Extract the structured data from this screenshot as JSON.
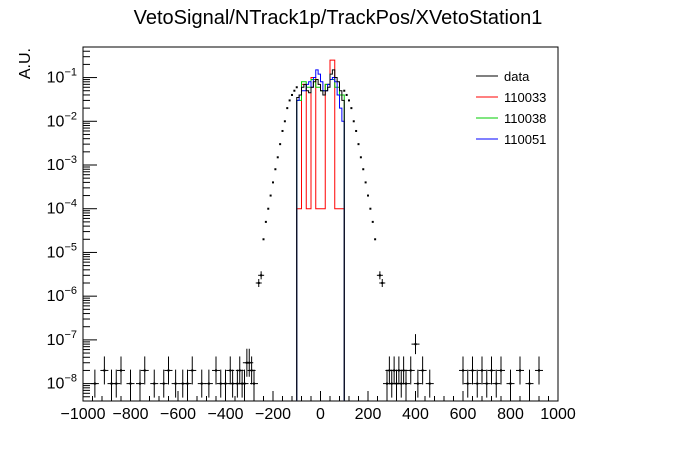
{
  "chart_data": {
    "type": "histogram",
    "title": "VetoSignal/NTrack1p/TrackPos/XVetoStation1",
    "xlabel": "",
    "ylabel": "A.U.",
    "xlim": [
      -1000,
      1000
    ],
    "ylim": [
      4e-09,
      0.5
    ],
    "y_scale": "log",
    "grid": false,
    "legend_position": "top-right",
    "x_ticks": [
      -1000,
      -800,
      -600,
      -400,
      -200,
      0,
      200,
      400,
      600,
      800,
      1000
    ],
    "x_tick_labels": [
      "−1000",
      "−800",
      "−600",
      "−400",
      "−200",
      "0",
      "200",
      "400",
      "600",
      "800",
      "1000"
    ],
    "y_ticks": [
      {
        "value": 1e-08,
        "base": "10",
        "exp": "−8"
      },
      {
        "value": 1e-07,
        "base": "10",
        "exp": "−7"
      },
      {
        "value": 1e-06,
        "base": "10",
        "exp": "−6"
      },
      {
        "value": 1e-05,
        "base": "10",
        "exp": "−5"
      },
      {
        "value": 0.0001,
        "base": "10",
        "exp": "−4"
      },
      {
        "value": 0.001,
        "base": "10",
        "exp": "−3"
      },
      {
        "value": 0.01,
        "base": "10",
        "exp": "−2"
      },
      {
        "value": 0.1,
        "base": "10",
        "exp": "−1"
      }
    ],
    "series": [
      {
        "name": "data",
        "style": "markers",
        "color": "#000000",
        "points": [
          [
            -950,
            1e-08
          ],
          [
            -910,
            2e-08
          ],
          [
            -880,
            1e-08
          ],
          [
            -860,
            1e-08
          ],
          [
            -840,
            2e-08
          ],
          [
            -800,
            1e-08
          ],
          [
            -760,
            1e-08
          ],
          [
            -740,
            2e-08
          ],
          [
            -700,
            1e-08
          ],
          [
            -660,
            1e-08
          ],
          [
            -640,
            2e-08
          ],
          [
            -610,
            1e-08
          ],
          [
            -580,
            1e-08
          ],
          [
            -560,
            1e-08
          ],
          [
            -540,
            2e-08
          ],
          [
            -500,
            1e-08
          ],
          [
            -470,
            1e-08
          ],
          [
            -440,
            2e-08
          ],
          [
            -420,
            1e-08
          ],
          [
            -400,
            1e-08
          ],
          [
            -380,
            2e-08
          ],
          [
            -370,
            1e-08
          ],
          [
            -350,
            1e-08
          ],
          [
            -340,
            2e-08
          ],
          [
            -330,
            1e-08
          ],
          [
            -320,
            1e-08
          ],
          [
            -310,
            3e-08
          ],
          [
            -300,
            3e-08
          ],
          [
            -290,
            2e-08
          ],
          [
            -280,
            1e-08
          ],
          [
            -260,
            2e-06
          ],
          [
            -250,
            3e-06
          ],
          [
            -240,
            2e-05
          ],
          [
            -230,
            5e-05
          ],
          [
            -220,
            0.0001
          ],
          [
            -210,
            0.0002
          ],
          [
            -200,
            0.0004
          ],
          [
            -190,
            0.0008
          ],
          [
            -180,
            0.0015
          ],
          [
            -170,
            0.003
          ],
          [
            -160,
            0.006
          ],
          [
            -150,
            0.01
          ],
          [
            -140,
            0.02
          ],
          [
            -130,
            0.03
          ],
          [
            -120,
            0.04
          ],
          [
            -110,
            0.05
          ],
          [
            -100,
            0.06
          ],
          [
            100,
            0.05
          ],
          [
            110,
            0.04
          ],
          [
            120,
            0.03
          ],
          [
            130,
            0.02
          ],
          [
            140,
            0.01
          ],
          [
            150,
            0.006
          ],
          [
            160,
            0.003
          ],
          [
            170,
            0.0015
          ],
          [
            180,
            0.0008
          ],
          [
            190,
            0.0004
          ],
          [
            200,
            0.0002
          ],
          [
            210,
            0.0001
          ],
          [
            220,
            5e-05
          ],
          [
            230,
            2e-05
          ],
          [
            250,
            3e-06
          ],
          [
            260,
            2e-06
          ],
          [
            280,
            1e-08
          ],
          [
            290,
            2e-08
          ],
          [
            300,
            1e-08
          ],
          [
            310,
            2e-08
          ],
          [
            320,
            1e-08
          ],
          [
            330,
            2e-08
          ],
          [
            340,
            1e-08
          ],
          [
            350,
            2e-08
          ],
          [
            360,
            1e-08
          ],
          [
            380,
            2e-08
          ],
          [
            400,
            8e-08
          ],
          [
            410,
            1e-08
          ],
          [
            430,
            2e-08
          ],
          [
            460,
            1e-08
          ],
          [
            600,
            2e-08
          ],
          [
            620,
            1e-08
          ],
          [
            640,
            2e-08
          ],
          [
            660,
            1e-08
          ],
          [
            680,
            2e-08
          ],
          [
            700,
            1e-08
          ],
          [
            720,
            2e-08
          ],
          [
            740,
            1e-08
          ],
          [
            760,
            2e-08
          ],
          [
            800,
            1e-08
          ],
          [
            840,
            2e-08
          ],
          [
            880,
            1e-08
          ],
          [
            920,
            2e-08
          ]
        ],
        "histogram": {
          "edges": [
            -100,
            -90,
            -80,
            -70,
            -60,
            -50,
            -40,
            -30,
            -20,
            -10,
            0,
            10,
            20,
            30,
            40,
            50,
            60,
            70,
            80,
            90,
            100
          ],
          "values": [
            0.035,
            0.04,
            0.06,
            0.07,
            0.05,
            0.045,
            0.06,
            0.08,
            0.09,
            0.07,
            0.05,
            0.04,
            0.05,
            0.06,
            0.12,
            0.15,
            0.1,
            0.08,
            0.05,
            0.03
          ]
        }
      },
      {
        "name": "110033",
        "style": "step",
        "color": "#ff0000",
        "edges": [
          -100,
          -80,
          -60,
          -40,
          -20,
          0,
          20,
          40,
          60,
          80,
          100
        ],
        "values": [
          0.0001,
          0.07,
          0.0001,
          0.1,
          0.0001,
          0.0001,
          0.07,
          0.25,
          0.0001,
          0.0001
        ]
      },
      {
        "name": "110038",
        "style": "step",
        "color": "#00cc00",
        "edges": [
          -100,
          -80,
          -60,
          -40,
          -20,
          0,
          20,
          40,
          60,
          80,
          100
        ],
        "values": [
          0.03,
          0.08,
          0.06,
          0.09,
          0.06,
          0.05,
          0.07,
          0.09,
          0.06,
          0.04
        ]
      },
      {
        "name": "110051",
        "style": "step",
        "color": "#0000ff",
        "edges": [
          -100,
          -90,
          -80,
          -70,
          -60,
          -50,
          -40,
          -30,
          -20,
          -10,
          0,
          10,
          20,
          30,
          40,
          50,
          60,
          70,
          80,
          90,
          100
        ],
        "values": [
          0.03,
          0.04,
          0.05,
          0.05,
          0.07,
          0.08,
          0.06,
          0.1,
          0.15,
          0.12,
          0.08,
          0.05,
          0.05,
          0.07,
          0.09,
          0.1,
          0.08,
          0.04,
          0.02,
          0.01
        ]
      }
    ]
  }
}
